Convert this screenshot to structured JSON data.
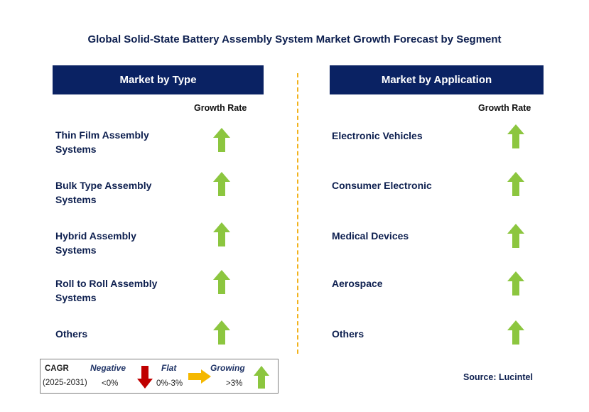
{
  "title": "Global Solid-State Battery Assembly System Market Growth Forecast by Segment",
  "type_panel": {
    "header": "Market by Type",
    "growth_label": "Growth Rate",
    "items": [
      {
        "label_line1": "Thin Film Assembly",
        "label_line2": "Systems",
        "trend": "growing"
      },
      {
        "label_line1": "Bulk Type Assembly",
        "label_line2": "Systems",
        "trend": "growing"
      },
      {
        "label_line1": "Hybrid Assembly",
        "label_line2": "Systems",
        "trend": "growing"
      },
      {
        "label_line1": "Roll to Roll Assembly",
        "label_line2": "Systems",
        "trend": "growing"
      },
      {
        "label_line1": "Others",
        "label_line2": "",
        "trend": "growing"
      }
    ]
  },
  "application_panel": {
    "header": "Market by Application",
    "growth_label": "Growth Rate",
    "items": [
      {
        "label": "Electronic Vehicles",
        "trend": "growing"
      },
      {
        "label": "Consumer Electronic",
        "trend": "growing"
      },
      {
        "label": "Medical Devices",
        "trend": "growing"
      },
      {
        "label": "Aerospace",
        "trend": "growing"
      },
      {
        "label": "Others",
        "trend": "growing"
      }
    ]
  },
  "legend": {
    "cagr_label": "CAGR",
    "period": "(2025-2031)",
    "negative_label": "Negative",
    "negative_range": "<0%",
    "flat_label": "Flat",
    "flat_range": "0%-3%",
    "growing_label": "Growing",
    "growing_range": ">3%"
  },
  "source": "Source: Lucintel",
  "colors": {
    "header_bg": "#0a2263",
    "growing_arrow": "#8cc63f",
    "negative_arrow": "#c00000",
    "flat_arrow": "#f5b800",
    "divider": "#f2b21b"
  },
  "icons": {
    "growing": "arrow-up-icon",
    "negative": "arrow-down-icon",
    "flat": "arrow-right-icon"
  }
}
